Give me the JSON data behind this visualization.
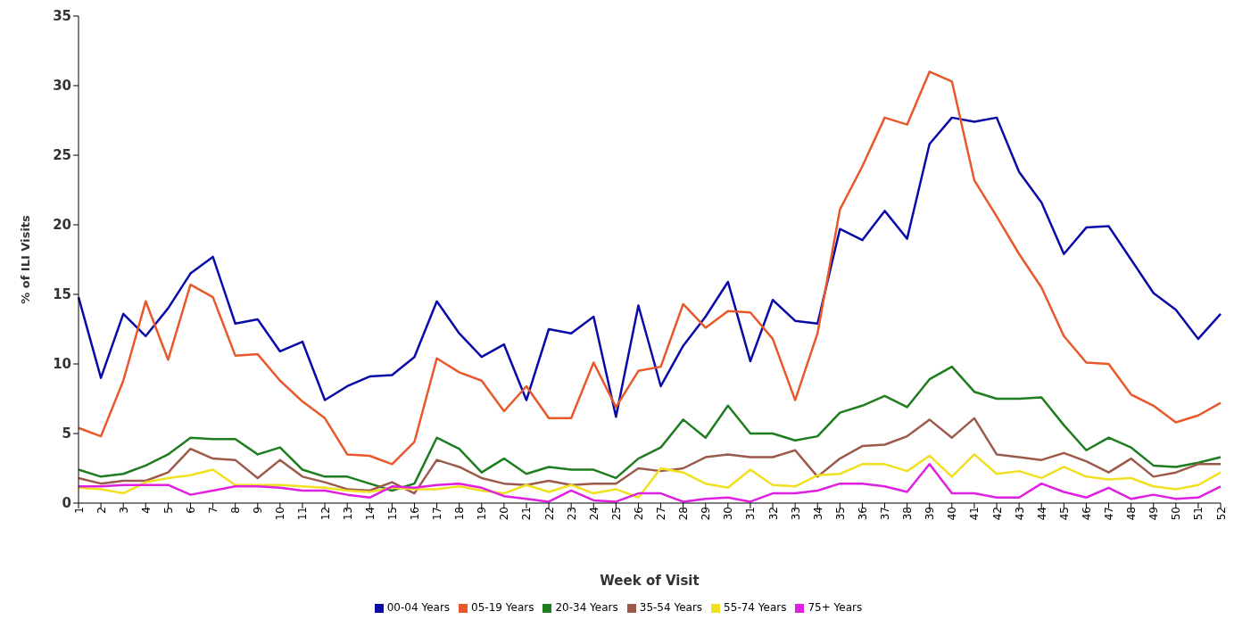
{
  "chart_data": {
    "type": "line",
    "xlabel": "Week of Visit",
    "ylabel": "% of ILI Visits",
    "categories": [
      "1",
      "2",
      "3",
      "4",
      "5",
      "6",
      "7",
      "8",
      "9",
      "10",
      "11",
      "12",
      "13",
      "14",
      "15",
      "16",
      "17",
      "18",
      "19",
      "20",
      "21",
      "22",
      "23",
      "24",
      "25",
      "26",
      "27",
      "28",
      "29",
      "30",
      "31",
      "32",
      "33",
      "34",
      "35",
      "36",
      "37",
      "38",
      "39",
      "40",
      "41",
      "42",
      "43",
      "44",
      "45",
      "46",
      "47",
      "48",
      "49",
      "50",
      "51",
      "52"
    ],
    "ylim": [
      0,
      35
    ],
    "yticks": [
      0,
      5,
      10,
      15,
      20,
      25,
      30,
      35
    ],
    "grid": false,
    "legend": "bottom",
    "marker": "none",
    "line_style": "solid",
    "series": [
      {
        "name": "00-04 Years",
        "color": "#0a0aa8",
        "values": [
          14.8,
          9.0,
          13.6,
          12.0,
          14.0,
          16.5,
          17.7,
          12.9,
          13.2,
          10.9,
          11.6,
          7.4,
          8.4,
          9.1,
          9.2,
          10.5,
          14.5,
          12.2,
          10.5,
          11.4,
          7.4,
          12.5,
          12.2,
          13.4,
          6.2,
          14.2,
          8.4,
          11.3,
          13.4,
          15.9,
          10.2,
          14.6,
          13.1,
          12.9,
          19.7,
          18.9,
          21.0,
          19.0,
          25.8,
          27.7,
          27.4,
          27.7,
          23.8,
          21.6,
          17.9,
          19.8,
          19.9,
          17.5,
          15.1,
          13.9,
          11.8,
          13.6
        ]
      },
      {
        "name": "05-19 Years",
        "color": "#e8582a",
        "values": [
          5.4,
          4.8,
          8.8,
          14.5,
          10.3,
          15.7,
          14.8,
          10.6,
          10.7,
          8.8,
          7.3,
          6.1,
          3.5,
          3.4,
          2.8,
          4.4,
          10.4,
          9.4,
          8.8,
          6.6,
          8.4,
          6.1,
          6.1,
          10.1,
          6.9,
          9.5,
          9.8,
          14.3,
          12.6,
          13.8,
          13.7,
          11.8,
          7.4,
          12.2,
          21.1,
          24.2,
          27.7,
          27.2,
          31.0,
          30.3,
          23.2,
          20.6,
          17.9,
          15.5,
          12.0,
          10.1,
          10.0,
          7.8,
          7.0,
          5.8,
          6.3,
          7.2
        ]
      },
      {
        "name": "20-34 Years",
        "color": "#1e7d1e",
        "values": [
          2.4,
          1.9,
          2.1,
          2.7,
          3.5,
          4.7,
          4.6,
          4.6,
          3.5,
          4.0,
          2.4,
          1.9,
          1.9,
          1.4,
          0.9,
          1.4,
          4.7,
          3.9,
          2.2,
          3.2,
          2.1,
          2.6,
          2.4,
          2.4,
          1.8,
          3.2,
          4.0,
          6.0,
          4.7,
          7.0,
          5.0,
          5.0,
          4.5,
          4.8,
          6.5,
          7.0,
          7.7,
          6.9,
          8.9,
          9.8,
          8.0,
          7.5,
          7.5,
          7.6,
          5.6,
          3.8,
          4.7,
          4.0,
          2.7,
          2.6,
          2.9,
          3.3
        ]
      },
      {
        "name": "35-54 Years",
        "color": "#9c5a4a",
        "values": [
          1.8,
          1.4,
          1.6,
          1.6,
          2.2,
          3.9,
          3.2,
          3.1,
          1.8,
          3.1,
          1.9,
          1.5,
          1.0,
          0.9,
          1.5,
          0.7,
          3.1,
          2.6,
          1.8,
          1.4,
          1.3,
          1.6,
          1.3,
          1.4,
          1.4,
          2.5,
          2.3,
          2.5,
          3.3,
          3.5,
          3.3,
          3.3,
          3.8,
          1.9,
          3.2,
          4.1,
          4.2,
          4.8,
          6.0,
          4.7,
          6.1,
          3.5,
          3.3,
          3.1,
          3.6,
          3.0,
          2.2,
          3.2,
          1.9,
          2.2,
          2.8,
          2.8
        ]
      },
      {
        "name": "55-74 Years",
        "color": "#f0e020",
        "values": [
          1.1,
          1.0,
          0.7,
          1.5,
          1.8,
          2.0,
          2.4,
          1.3,
          1.3,
          1.3,
          1.2,
          1.1,
          0.9,
          0.8,
          1.1,
          1.0,
          1.0,
          1.2,
          0.9,
          0.7,
          1.3,
          0.8,
          1.3,
          0.7,
          1.0,
          0.4,
          2.5,
          2.2,
          1.4,
          1.1,
          2.4,
          1.3,
          1.2,
          2.0,
          2.1,
          2.8,
          2.8,
          2.3,
          3.4,
          1.9,
          3.5,
          2.1,
          2.3,
          1.8,
          2.6,
          1.9,
          1.7,
          1.8,
          1.2,
          1.0,
          1.3,
          2.2
        ]
      },
      {
        "name": "75+ Years",
        "color": "#e020e0",
        "values": [
          1.2,
          1.2,
          1.3,
          1.3,
          1.3,
          0.6,
          0.9,
          1.2,
          1.2,
          1.1,
          0.9,
          0.9,
          0.6,
          0.4,
          1.2,
          1.1,
          1.3,
          1.4,
          1.1,
          0.5,
          0.3,
          0.1,
          0.9,
          0.2,
          0.1,
          0.7,
          0.7,
          0.1,
          0.3,
          0.4,
          0.1,
          0.7,
          0.7,
          0.9,
          1.4,
          1.4,
          1.2,
          0.8,
          2.8,
          0.7,
          0.7,
          0.4,
          0.4,
          1.4,
          0.8,
          0.4,
          1.1,
          0.3,
          0.6,
          0.3,
          0.4,
          1.2
        ]
      }
    ]
  }
}
